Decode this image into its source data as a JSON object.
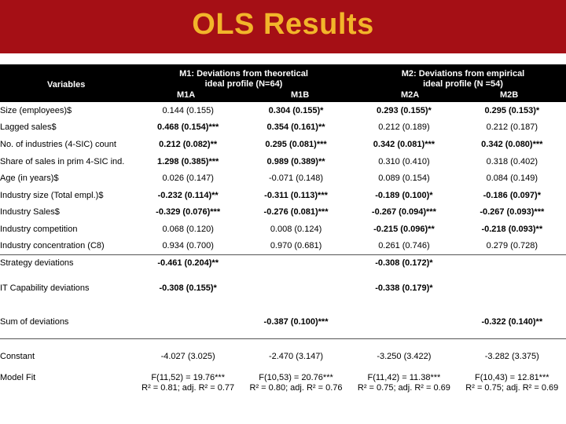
{
  "title": "OLS Results",
  "header": {
    "variables": "Variables",
    "m1_title_line1": "M1: Deviations from theoretical",
    "m1_title_line2": "ideal profile (N=64)",
    "m2_title_line1": "M2: Deviations from empirical",
    "m2_title_line2": "ideal profile (N =54)",
    "m1a": "M1A",
    "m1b": "M1B",
    "m2a": "M2A",
    "m2b": "M2B"
  },
  "rows": [
    {
      "label": "Size (employees)$",
      "m1a": "0.144 (0.155)",
      "m1b": "0.304 (0.155)*",
      "m2a": "0.293 (0.155)*",
      "m2b": "0.295 (0.153)*"
    },
    {
      "label": "Lagged sales$",
      "m1a": "0.468 (0.154)***",
      "m1b": "0.354 (0.161)**",
      "m2a": "0.212 (0.189)",
      "m2b": "0.212 (0.187)"
    },
    {
      "label": "No. of industries (4-SIC) count",
      "m1a": "0.212 (0.082)**",
      "m1b": "0.295 (0.081)***",
      "m2a": "0.342 (0.081)***",
      "m2b": "0.342 (0.080)***"
    },
    {
      "label": "Share of sales in prim 4-SIC ind.",
      "m1a": "1.298 (0.385)***",
      "m1b": "0.989 (0.389)**",
      "m2a": "0.310 (0.410)",
      "m2b": "0.318 (0.402)"
    },
    {
      "label": "Age (in years)$",
      "m1a": "0.026 (0.147)",
      "m1b": "-0.071 (0.148)",
      "m2a": "0.089 (0.154)",
      "m2b": "0.084 (0.149)"
    },
    {
      "label": "Industry size (Total empl.)$",
      "m1a": "-0.232 (0.114)**",
      "m1b": "-0.311 (0.113)***",
      "m2a": "-0.189 (0.100)*",
      "m2b": "-0.186 (0.097)*"
    },
    {
      "label": "Industry Sales$",
      "m1a": "-0.329 (0.076)***",
      "m1b": "-0.276 (0.081)***",
      "m2a": "-0.267 (0.094)***",
      "m2b": "-0.267 (0.093)***"
    },
    {
      "label": "Industry competition",
      "m1a": "0.068 (0.120)",
      "m1b": "0.008 (0.124)",
      "m2a": "-0.215 (0.096)**",
      "m2b": "-0.218 (0.093)**"
    },
    {
      "label": "Industry concentration (C8)",
      "m1a": "0.934 (0.700)",
      "m1b": "0.970 (0.681)",
      "m2a": "0.261 (0.746)",
      "m2b": "0.279 (0.728)"
    }
  ],
  "deviation_rows": [
    {
      "label": "Strategy deviations",
      "m1a": "-0.461 (0.204)**",
      "m1b": "",
      "m2a": "-0.308 (0.172)*",
      "m2b": ""
    },
    {
      "label": "IT Capability deviations",
      "m1a": "-0.308 (0.155)*",
      "m1b": "",
      "m2a": "-0.338 (0.179)*",
      "m2b": ""
    },
    {
      "label": "Sum of deviations",
      "m1a": "",
      "m1b": "-0.387 (0.100)***",
      "m2a": "",
      "m2b": "-0.322 (0.140)**"
    }
  ],
  "constant": {
    "label": "Constant",
    "m1a": "-4.027 (3.025)",
    "m1b": "-2.470 (3.147)",
    "m2a": "-3.250 (3.422)",
    "m2b": "-3.282 (3.375)"
  },
  "model_fit": {
    "label": "Model Fit",
    "m1a_f": "F(11,52) = 19.76***",
    "m1a_r": "R² = 0.81; adj. R² = 0.77",
    "m1b_f": "F(10,53) = 20.76***",
    "m1b_r": "R² = 0.80; adj. R² = 0.76",
    "m2a_f": "F(11,42) = 11.38***",
    "m2a_r": "R² = 0.75; adj. R² = 0.69",
    "m2b_f": "F(10,43) = 12.81***",
    "m2b_r": "R² = 0.75; adj. R² = 0.69"
  },
  "colors": {
    "title_bg": "#a50f15",
    "title_text": "#f2b52a",
    "header_bg": "#000000"
  }
}
